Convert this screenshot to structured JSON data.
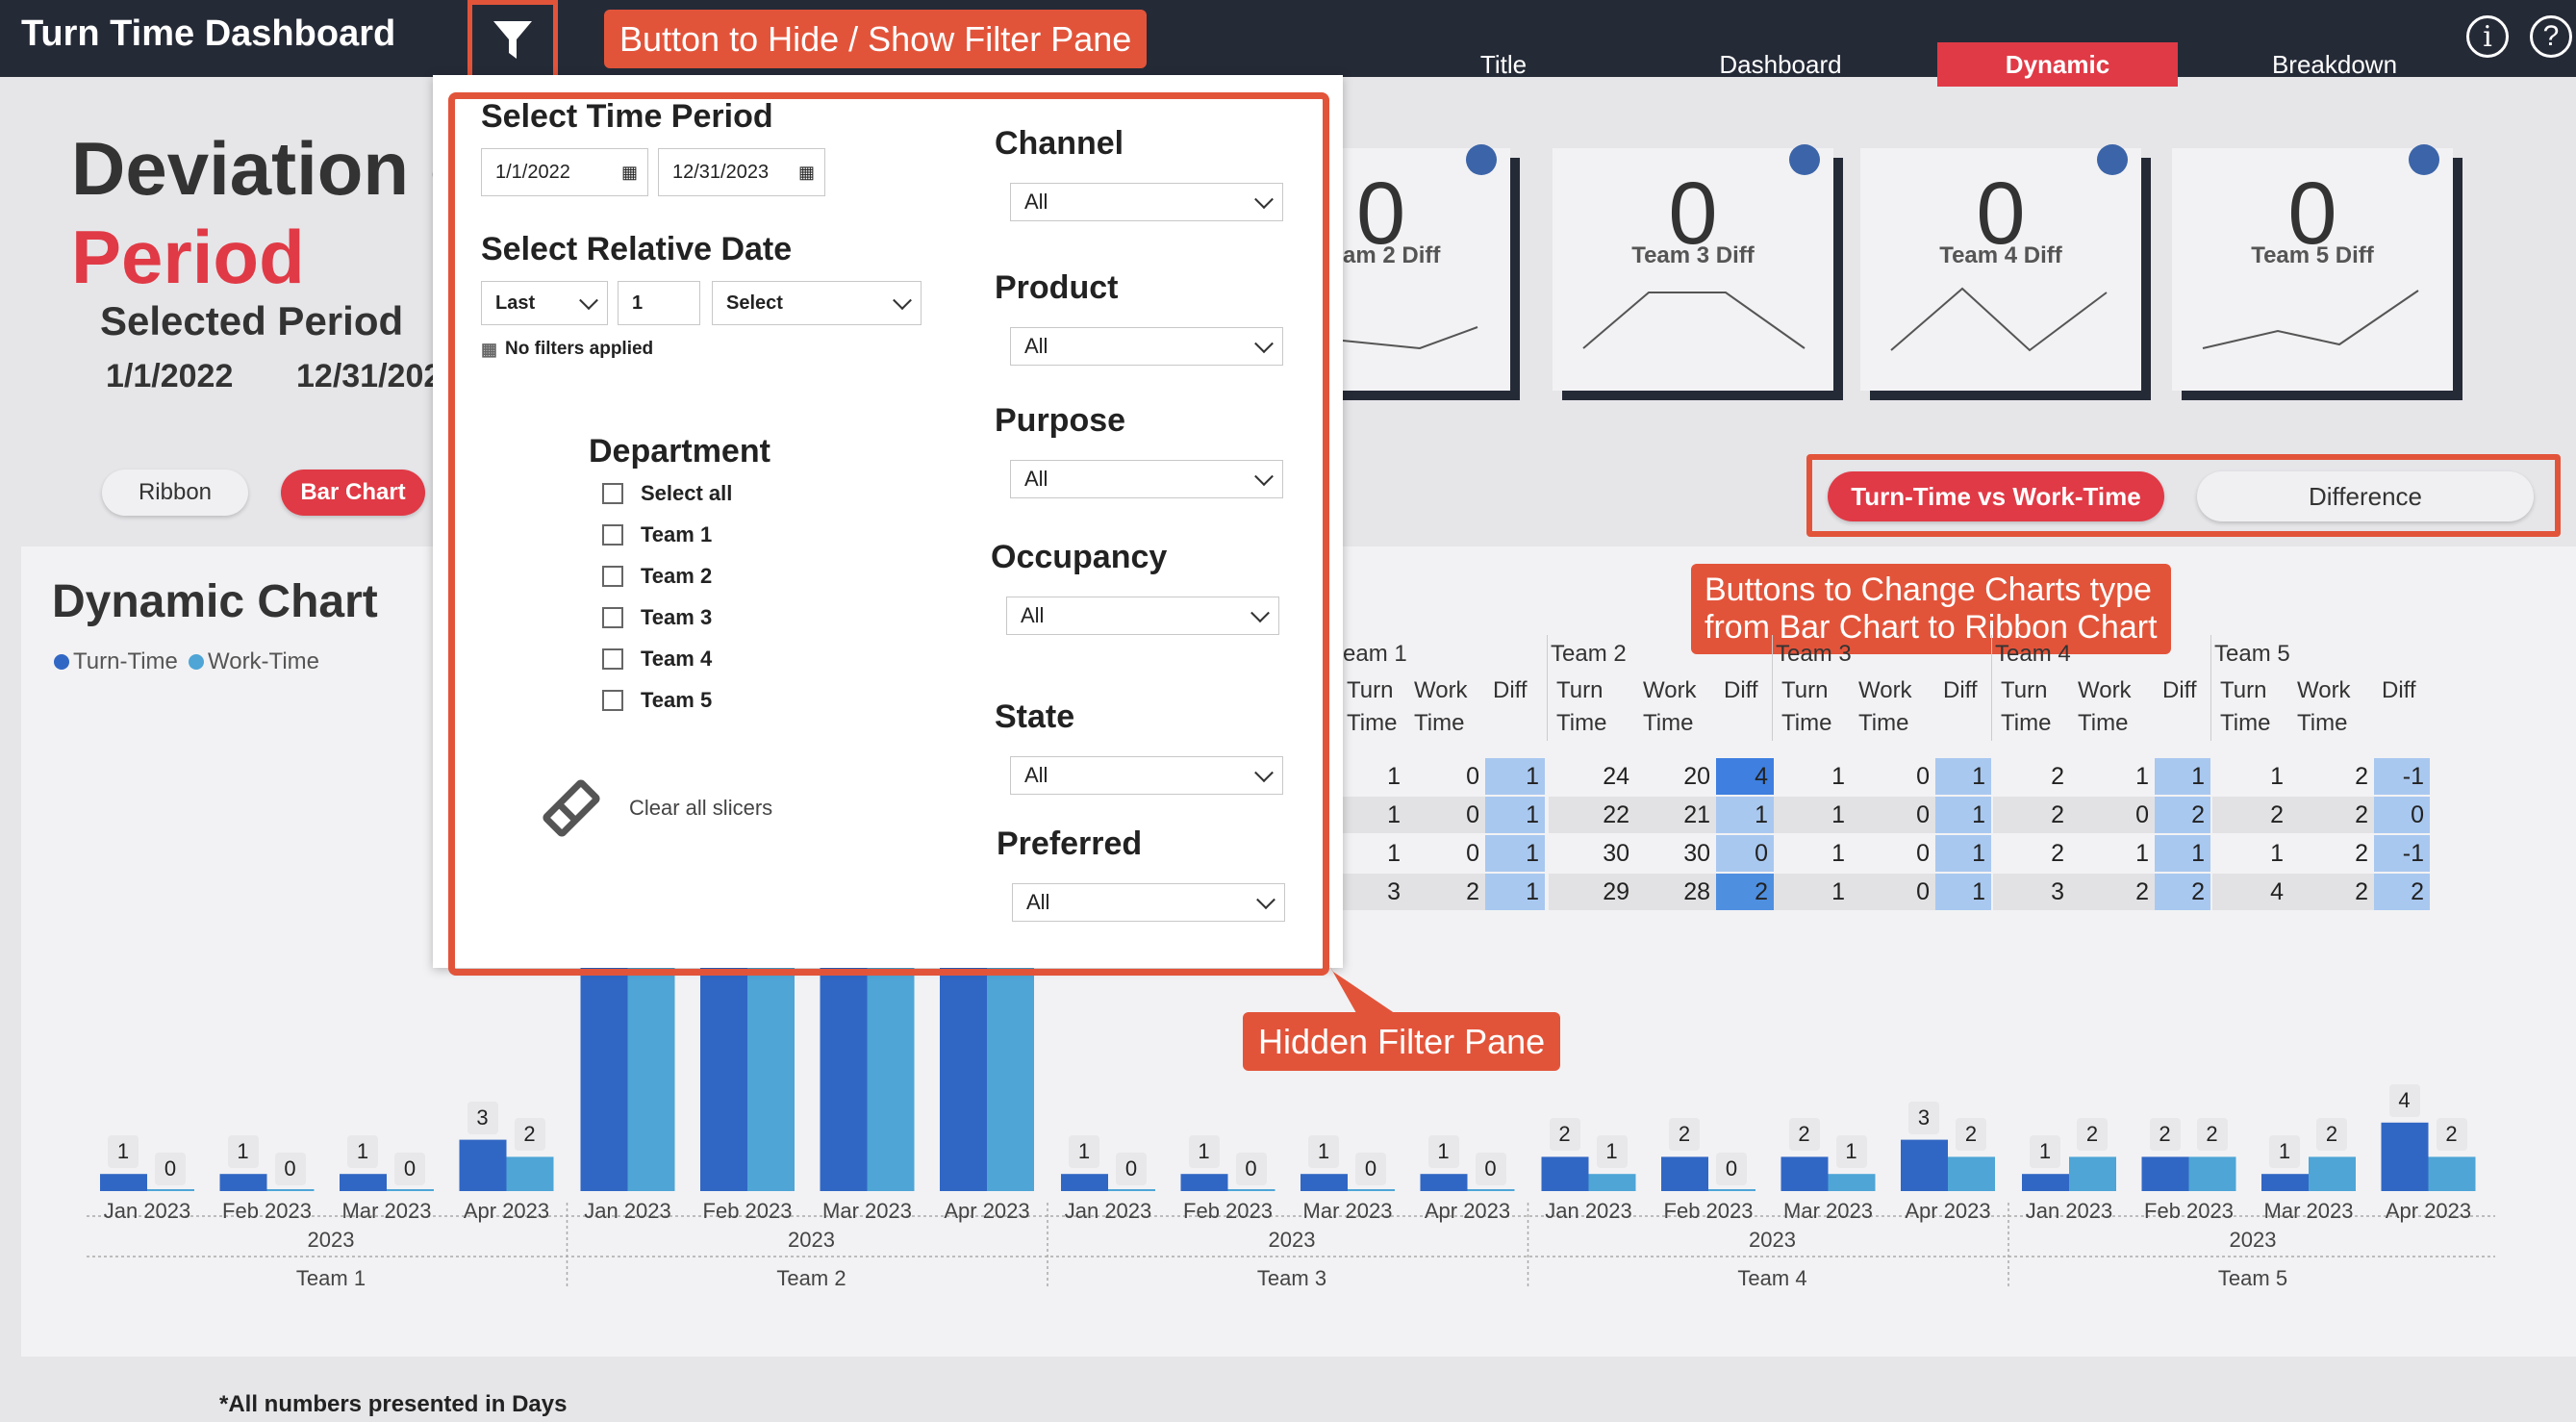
{
  "app": {
    "title": "Turn Time Dashboard"
  },
  "nav": {
    "tabs": [
      {
        "label": "Title"
      },
      {
        "label": "Dashboard"
      },
      {
        "label": "Dynamic"
      },
      {
        "label": "Breakdown"
      }
    ],
    "active": "Dynamic"
  },
  "annotations": {
    "filter_button": "Button to Hide / Show Filter Pane",
    "chart_type_buttons_line1": "Buttons to Change Charts type",
    "chart_type_buttons_line2": "from Bar Chart to Ribbon Chart",
    "hidden_pane": "Hidden Filter Pane"
  },
  "header": {
    "title_line1": "Deviation o",
    "title_line2": "Period",
    "selected_period_label": "Selected Period",
    "start_date": "1/1/2022",
    "end_date": "12/31/202"
  },
  "chart_toggle": {
    "ribbon": "Ribbon",
    "bar": "Bar Chart"
  },
  "view_toggle": {
    "turn_vs_work": "Turn-Time vs Work-Time",
    "difference": "Difference"
  },
  "kpis": [
    {
      "value": "0",
      "label": "am 2 Diff"
    },
    {
      "value": "0",
      "label": "Team 3 Diff"
    },
    {
      "value": "0",
      "label": "Team 4 Diff"
    },
    {
      "value": "0",
      "label": "Team 5 Diff"
    }
  ],
  "chart": {
    "title": "Dynamic Chart",
    "legend": [
      "Turn-Time",
      "Work-Time"
    ],
    "footnote": "*All numbers presented in Days"
  },
  "chart_data": {
    "type": "bar",
    "categories": [
      "Jan 2023",
      "Feb 2023",
      "Mar 2023",
      "Apr 2023"
    ],
    "year": "2023",
    "groups": [
      "Team 1",
      "Team 2",
      "Team 3",
      "Team 4",
      "Team 5"
    ],
    "series": [
      {
        "name": "Turn-Time",
        "values": [
          [
            1,
            1,
            1,
            3
          ],
          [
            24,
            22,
            30,
            29
          ],
          [
            1,
            1,
            1,
            1
          ],
          [
            2,
            2,
            2,
            3
          ],
          [
            1,
            2,
            1,
            4
          ]
        ]
      },
      {
        "name": "Work-Time",
        "values": [
          [
            0,
            0,
            0,
            2
          ],
          [
            20,
            21,
            30,
            28
          ],
          [
            0,
            0,
            0,
            0
          ],
          [
            1,
            0,
            1,
            2
          ],
          [
            2,
            2,
            2,
            2
          ]
        ]
      }
    ],
    "colors": {
      "turn": "#3167c4",
      "work": "#4ea5d6"
    }
  },
  "matrix": {
    "teams": [
      "eam 1",
      "Team 2",
      "Team 3",
      "Team 4",
      "Team 5"
    ],
    "subheaders": [
      "Turn Time",
      "Work Time",
      "Diff"
    ],
    "rows": [
      [
        "1",
        "0",
        "1",
        "24",
        "20",
        "4",
        "1",
        "0",
        "1",
        "2",
        "1",
        "1",
        "1",
        "2",
        "-1"
      ],
      [
        "1",
        "0",
        "1",
        "22",
        "21",
        "1",
        "1",
        "0",
        "1",
        "2",
        "0",
        "2",
        "2",
        "2",
        "0"
      ],
      [
        "1",
        "0",
        "1",
        "30",
        "30",
        "0",
        "1",
        "0",
        "1",
        "2",
        "1",
        "1",
        "1",
        "2",
        "-1"
      ],
      [
        "3",
        "2",
        "1",
        "29",
        "28",
        "2",
        "1",
        "0",
        "1",
        "3",
        "2",
        "2",
        "4",
        "2",
        "2"
      ]
    ]
  },
  "filter_pane": {
    "time_period_title": "Select Time Period",
    "start_date": "1/1/2022",
    "end_date": "12/31/2023",
    "relative_title": "Select Relative Date",
    "relative_mode": "Last",
    "relative_count": "1",
    "relative_unit": "Select",
    "no_filters": "No filters applied",
    "department_title": "Department",
    "departments": [
      "Select all",
      "Team 1",
      "Team 2",
      "Team 3",
      "Team 4",
      "Team 5"
    ],
    "clear_all": "Clear all slicers",
    "dropdowns": [
      {
        "label": "Channel",
        "value": "All"
      },
      {
        "label": "Product",
        "value": "All"
      },
      {
        "label": "Purpose",
        "value": "All"
      },
      {
        "label": "Occupancy",
        "value": "All"
      },
      {
        "label": "State",
        "value": "All"
      },
      {
        "label": "Preferred",
        "value": "All"
      }
    ]
  }
}
